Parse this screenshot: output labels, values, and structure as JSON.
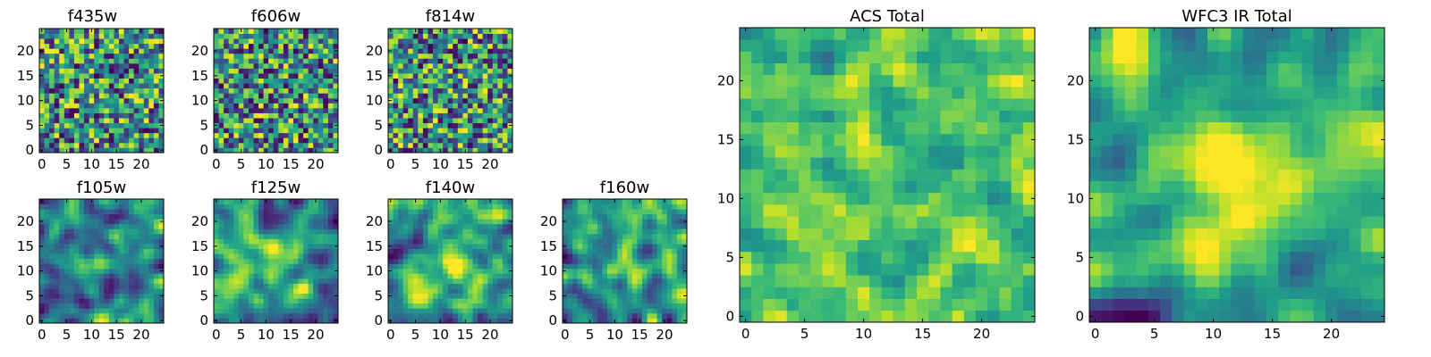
{
  "chart_data": [
    {
      "type": "heatmap",
      "title": "f435w",
      "size": 25,
      "colormap": "viridis",
      "xticks": [
        "0",
        "5",
        "10",
        "15",
        "20"
      ],
      "yticks": [
        "0",
        "5",
        "10",
        "15",
        "20"
      ],
      "xlim": [
        0,
        24
      ],
      "ylim": [
        0,
        24
      ],
      "seed": 11,
      "smooth": 0,
      "blobs": []
    },
    {
      "type": "heatmap",
      "title": "f606w",
      "size": 25,
      "colormap": "viridis",
      "xticks": [
        "0",
        "5",
        "10",
        "15",
        "20"
      ],
      "yticks": [
        "0",
        "5",
        "10",
        "15",
        "20"
      ],
      "xlim": [
        0,
        24
      ],
      "ylim": [
        0,
        24
      ],
      "seed": 23,
      "smooth": 0,
      "blobs": []
    },
    {
      "type": "heatmap",
      "title": "f814w",
      "size": 25,
      "colormap": "viridis",
      "xticks": [
        "0",
        "5",
        "10",
        "15",
        "20"
      ],
      "yticks": [
        "0",
        "5",
        "10",
        "15",
        "20"
      ],
      "xlim": [
        0,
        24
      ],
      "ylim": [
        0,
        24
      ],
      "seed": 37,
      "smooth": 0,
      "blobs": []
    },
    {
      "type": "heatmap",
      "title": "f105w",
      "size": 25,
      "colormap": "viridis",
      "xticks": [
        "0",
        "5",
        "10",
        "15",
        "20"
      ],
      "yticks": [
        "0",
        "5",
        "10",
        "15",
        "20"
      ],
      "xlim": [
        0,
        24
      ],
      "ylim": [
        0,
        24
      ],
      "seed": 41,
      "smooth": 2,
      "blobs": [
        [
          12,
          12,
          3,
          0.25
        ]
      ]
    },
    {
      "type": "heatmap",
      "title": "f125w",
      "size": 25,
      "colormap": "viridis",
      "xticks": [
        "0",
        "5",
        "10",
        "15",
        "20"
      ],
      "yticks": [
        "0",
        "5",
        "10",
        "15",
        "20"
      ],
      "xlim": [
        0,
        24
      ],
      "ylim": [
        0,
        24
      ],
      "seed": 53,
      "smooth": 2,
      "blobs": [
        [
          12,
          12,
          3,
          0.25
        ]
      ]
    },
    {
      "type": "heatmap",
      "title": "f140w",
      "size": 25,
      "colormap": "viridis",
      "xticks": [
        "0",
        "5",
        "10",
        "15",
        "20"
      ],
      "yticks": [
        "0",
        "5",
        "10",
        "15",
        "20"
      ],
      "xlim": [
        0,
        24
      ],
      "ylim": [
        0,
        24
      ],
      "seed": 67,
      "smooth": 2,
      "blobs": [
        [
          12,
          12,
          3,
          0.3
        ]
      ]
    },
    {
      "type": "heatmap",
      "title": "f160w",
      "size": 25,
      "colormap": "viridis",
      "xticks": [
        "0",
        "5",
        "10",
        "15",
        "20"
      ],
      "yticks": [
        "0",
        "5",
        "10",
        "15",
        "20"
      ],
      "xlim": [
        0,
        24
      ],
      "ylim": [
        0,
        24
      ],
      "seed": 79,
      "smooth": 2,
      "blobs": [
        [
          12,
          12,
          3,
          0.3
        ]
      ]
    },
    {
      "type": "heatmap",
      "title": "ACS Total",
      "size": 25,
      "colormap": "viridis",
      "xticks": [
        "0",
        "5",
        "10",
        "15",
        "20"
      ],
      "yticks": [
        "0",
        "5",
        "10",
        "15",
        "20"
      ],
      "xlim": [
        0,
        24
      ],
      "ylim": [
        0,
        24
      ],
      "seed": 89,
      "smooth": 1,
      "bias": 0.35,
      "blobs": []
    },
    {
      "type": "heatmap",
      "title": "WFC3 IR Total",
      "size": 25,
      "colormap": "viridis",
      "xticks": [
        "0",
        "5",
        "10",
        "15",
        "20"
      ],
      "yticks": [
        "0",
        "5",
        "10",
        "15",
        "20"
      ],
      "xlim": [
        0,
        24
      ],
      "ylim": [
        0,
        24
      ],
      "seed": 97,
      "smooth": 2,
      "blobs": [
        [
          12,
          12,
          3,
          0.45
        ],
        [
          2,
          23,
          3,
          0.3
        ]
      ]
    }
  ]
}
